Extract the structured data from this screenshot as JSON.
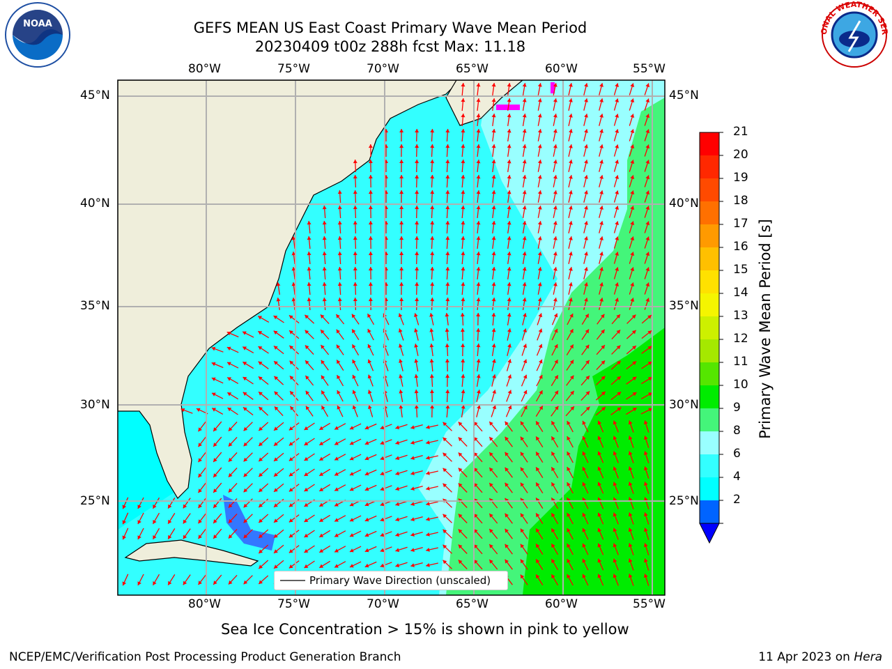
{
  "header": {
    "title_line1": "GEFS MEAN US East Coast Primary Wave Mean Period",
    "title_line2": "20230409 t00z 288h fcst   Max: 11.18"
  },
  "logos": {
    "left": "NOAA",
    "right": "NATIONAL WEATHER SERVICE"
  },
  "map": {
    "lon_labels": [
      "80°W",
      "75°W",
      "70°W",
      "65°W",
      "60°W",
      "55°W"
    ],
    "lat_labels": [
      "45°N",
      "40°N",
      "35°N",
      "30°N",
      "25°N"
    ],
    "legend_label": "Primary Wave Direction (unscaled)",
    "colors": {
      "land": "#efeedb",
      "coast": "#000000",
      "grid": "#b0b0b0",
      "arrows": "#ff0000",
      "ice": "#ff00ff"
    }
  },
  "colorbar": {
    "label": "Primary Wave Mean Period [s]",
    "ticks": [
      "21",
      "20",
      "19",
      "18",
      "17",
      "16",
      "15",
      "14",
      "13",
      "12",
      "11",
      "10",
      "9",
      "8",
      "6",
      "4",
      "2"
    ],
    "colors_bottom_to_top": [
      "#0064ff",
      "#00ffff",
      "#33ffff",
      "#99ffff",
      "#44f57a",
      "#00ec00",
      "#55e600",
      "#a5e800",
      "#cdf000",
      "#f5f500",
      "#ffe100",
      "#ffc000",
      "#ff9a00",
      "#ff7000",
      "#ff4a00",
      "#ff2800",
      "#ff0000"
    ],
    "underflow_color": "#0000ff"
  },
  "footer": {
    "subtitle": "Sea Ice Concentration > 15% is shown in pink to yellow",
    "left": "NCEP/EMC/Verification Post Processing Product Generation Branch",
    "right_date": "11 Apr 2023 on ",
    "right_host": "Hera"
  }
}
